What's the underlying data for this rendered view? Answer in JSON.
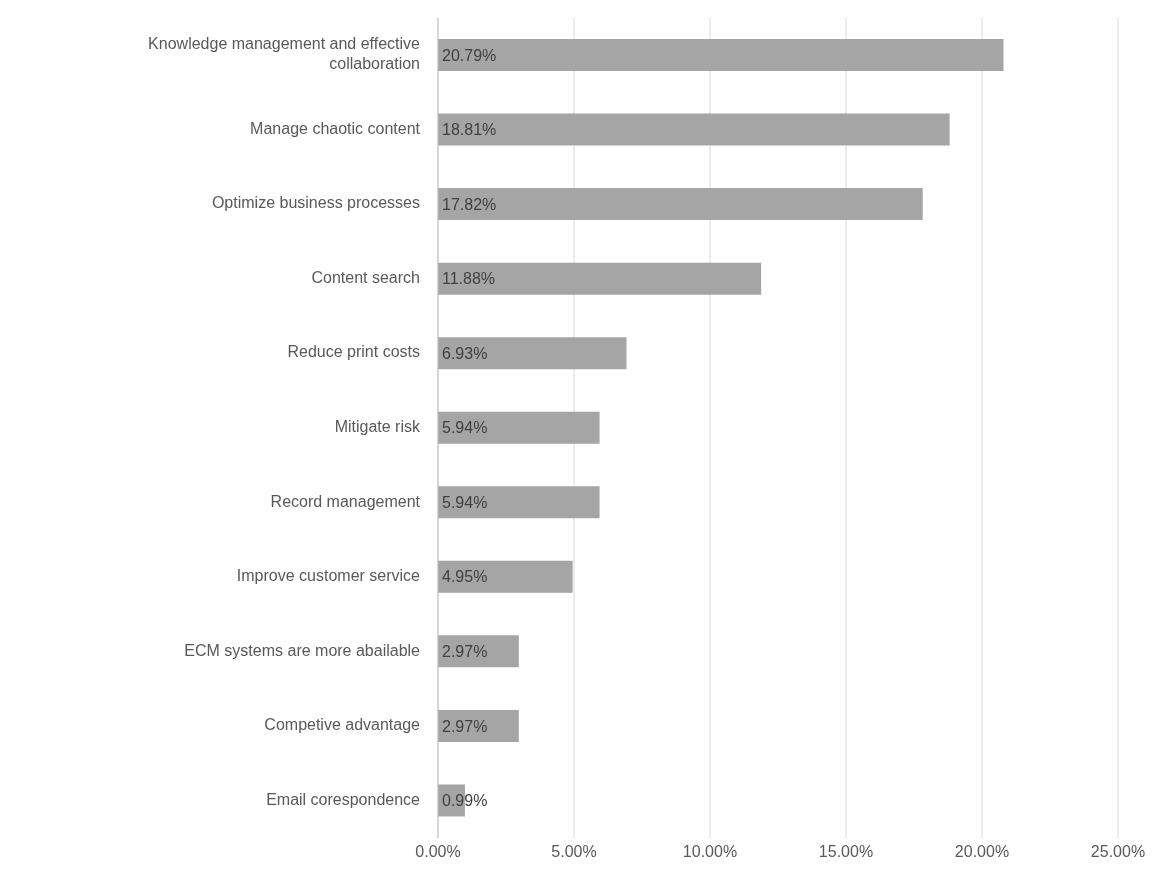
{
  "chart_data": {
    "type": "bar",
    "orientation": "horizontal",
    "categories": [
      "Knowledge management and effective collaboration",
      "Manage chaotic content",
      "Optimize business processes",
      "Content search",
      "Reduce print costs",
      "Mitigate risk",
      "Record management",
      "Improve customer service",
      "ECM systems are more abailable",
      "Competive advantage",
      "Email corespondence"
    ],
    "values": [
      20.79,
      18.81,
      17.82,
      11.88,
      6.93,
      5.94,
      5.94,
      4.95,
      2.97,
      2.97,
      0.99
    ],
    "value_labels": [
      "20.79%",
      "18.81%",
      "17.82%",
      "11.88%",
      "6.93%",
      "5.94%",
      "5.94%",
      "4.95%",
      "2.97%",
      "2.97%",
      "0.99%"
    ],
    "color": "#a5a5a5",
    "xlim": [
      0,
      25
    ],
    "xticks": [
      {
        "value": 0,
        "label": "0.00%"
      },
      {
        "value": 5,
        "label": "5.00%"
      },
      {
        "value": 10,
        "label": "10.00%"
      },
      {
        "value": 15,
        "label": "15.00%"
      },
      {
        "value": 20,
        "label": "20.00%"
      },
      {
        "value": 25,
        "label": "25.00%"
      }
    ],
    "grid": "x"
  }
}
